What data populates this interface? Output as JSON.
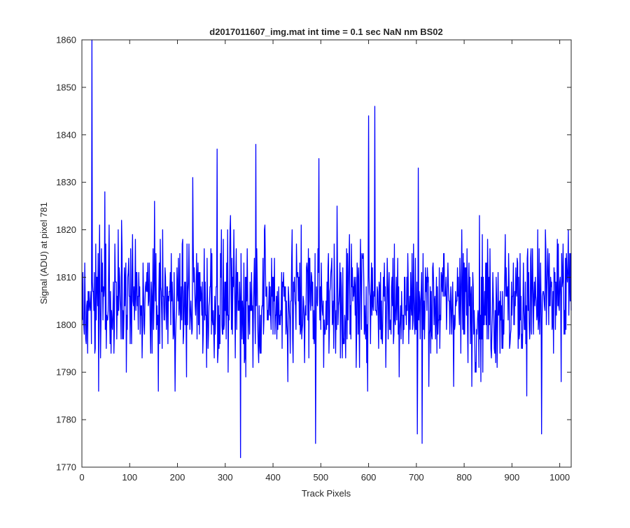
{
  "chart_data": {
    "type": "line",
    "title": "d2017011607_img.mat int time = 0.1 sec  NaN nm BS02",
    "xlabel": "Track Pixels",
    "ylabel": "Signal (ADU) at pixel 781",
    "xlim": [
      0,
      1024
    ],
    "ylim": [
      1770,
      1860
    ],
    "xticks": [
      0,
      100,
      200,
      300,
      400,
      500,
      600,
      700,
      800,
      900,
      1000
    ],
    "yticks": [
      1770,
      1780,
      1790,
      1800,
      1810,
      1820,
      1830,
      1840,
      1850,
      1860
    ],
    "grid": false,
    "line_color": "#0000ff",
    "series": [
      {
        "n_points": 1024,
        "mean": 1805,
        "noise_sd": 7,
        "peaks": [
          {
            "x": 21,
            "y": 1860
          },
          {
            "x": 48,
            "y": 1828
          },
          {
            "x": 232,
            "y": 1831
          },
          {
            "x": 283,
            "y": 1837
          },
          {
            "x": 332,
            "y": 1772
          },
          {
            "x": 364,
            "y": 1838
          },
          {
            "x": 496,
            "y": 1835
          },
          {
            "x": 489,
            "y": 1775
          },
          {
            "x": 600,
            "y": 1844
          },
          {
            "x": 613,
            "y": 1846
          },
          {
            "x": 702,
            "y": 1777
          },
          {
            "x": 704,
            "y": 1833
          },
          {
            "x": 712,
            "y": 1775
          },
          {
            "x": 962,
            "y": 1777
          },
          {
            "x": 1018,
            "y": 1820
          }
        ]
      }
    ]
  }
}
